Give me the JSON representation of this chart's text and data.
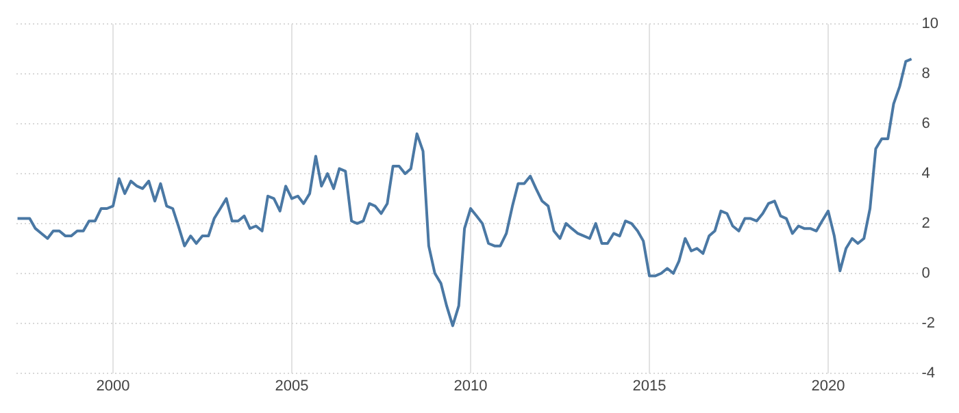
{
  "chart_data": {
    "type": "line",
    "x": [
      1997.33,
      1997.5,
      1997.67,
      1997.83,
      1998,
      1998.17,
      1998.33,
      1998.5,
      1998.67,
      1998.83,
      1999,
      1999.17,
      1999.33,
      1999.5,
      1999.67,
      1999.83,
      2000,
      2000.17,
      2000.33,
      2000.5,
      2000.67,
      2000.83,
      2001,
      2001.17,
      2001.33,
      2001.5,
      2001.67,
      2001.83,
      2002,
      2002.17,
      2002.33,
      2002.5,
      2002.67,
      2002.83,
      2003,
      2003.17,
      2003.33,
      2003.5,
      2003.67,
      2003.83,
      2004,
      2004.17,
      2004.33,
      2004.5,
      2004.67,
      2004.83,
      2005,
      2005.17,
      2005.33,
      2005.5,
      2005.67,
      2005.83,
      2006,
      2006.17,
      2006.33,
      2006.5,
      2006.67,
      2006.83,
      2007,
      2007.17,
      2007.33,
      2007.5,
      2007.67,
      2007.83,
      2008,
      2008.17,
      2008.33,
      2008.5,
      2008.67,
      2008.83,
      2009,
      2009.17,
      2009.33,
      2009.5,
      2009.67,
      2009.83,
      2010,
      2010.17,
      2010.33,
      2010.5,
      2010.67,
      2010.83,
      2011,
      2011.17,
      2011.33,
      2011.5,
      2011.67,
      2011.83,
      2012,
      2012.17,
      2012.33,
      2012.5,
      2012.67,
      2012.83,
      2013,
      2013.17,
      2013.33,
      2013.5,
      2013.67,
      2013.83,
      2014,
      2014.17,
      2014.33,
      2014.5,
      2014.67,
      2014.83,
      2015,
      2015.17,
      2015.33,
      2015.5,
      2015.67,
      2015.83,
      2016,
      2016.17,
      2016.33,
      2016.5,
      2016.67,
      2016.83,
      2017,
      2017.17,
      2017.33,
      2017.5,
      2017.67,
      2017.83,
      2018,
      2018.17,
      2018.33,
      2018.5,
      2018.67,
      2018.83,
      2019,
      2019.17,
      2019.33,
      2019.5,
      2019.67,
      2019.83,
      2020,
      2020.17,
      2020.33,
      2020.5,
      2020.67,
      2020.83,
      2021,
      2021.17,
      2021.33,
      2021.5,
      2021.67,
      2021.83,
      2022,
      2022.17,
      2022.33
    ],
    "series": [
      {
        "color": "#4a78a4",
        "values": [
          2.2,
          2.2,
          2.2,
          1.8,
          1.6,
          1.4,
          1.7,
          1.7,
          1.5,
          1.5,
          1.7,
          1.7,
          2.1,
          2.1,
          2.6,
          2.6,
          2.7,
          3.8,
          3.2,
          3.7,
          3.5,
          3.4,
          3.7,
          2.9,
          3.6,
          2.7,
          2.6,
          1.9,
          1.1,
          1.5,
          1.2,
          1.5,
          1.5,
          2.2,
          2.6,
          3.0,
          2.1,
          2.1,
          2.3,
          1.8,
          1.9,
          1.7,
          3.1,
          3.0,
          2.5,
          3.5,
          3.0,
          3.1,
          2.8,
          3.2,
          4.7,
          3.5,
          4.0,
          3.4,
          4.2,
          4.1,
          2.1,
          2.0,
          2.1,
          2.8,
          2.7,
          2.4,
          2.8,
          4.3,
          4.3,
          4.0,
          4.2,
          5.6,
          4.9,
          1.1,
          0.0,
          -0.4,
          -1.3,
          -2.1,
          -1.3,
          1.8,
          2.6,
          2.3,
          2.0,
          1.2,
          1.1,
          1.1,
          1.6,
          2.7,
          3.6,
          3.6,
          3.9,
          3.4,
          2.9,
          2.7,
          1.7,
          1.4,
          2.0,
          1.8,
          1.6,
          1.5,
          1.4,
          2.0,
          1.2,
          1.2,
          1.6,
          1.5,
          2.1,
          2.0,
          1.7,
          1.3,
          -0.1,
          -0.1,
          0.0,
          0.2,
          0.0,
          0.5,
          1.4,
          0.9,
          1.0,
          0.8,
          1.5,
          1.7,
          2.5,
          2.4,
          1.9,
          1.7,
          2.2,
          2.2,
          2.1,
          2.4,
          2.8,
          2.9,
          2.3,
          2.2,
          1.6,
          1.9,
          1.8,
          1.8,
          1.7,
          2.1,
          2.5,
          1.5,
          0.1,
          1.0,
          1.4,
          1.2,
          1.4,
          2.6,
          5.0,
          5.4,
          5.4,
          6.8,
          7.5,
          8.5,
          8.6
        ]
      }
    ],
    "xlim": [
      1997.3,
      2022.5
    ],
    "xticks": [
      2000,
      2005,
      2010,
      2015,
      2020
    ],
    "ylim": [
      -4,
      10
    ],
    "yticks": [
      -4,
      -2,
      0,
      2,
      4,
      6,
      8,
      10
    ],
    "grid": true,
    "legend": false
  }
}
